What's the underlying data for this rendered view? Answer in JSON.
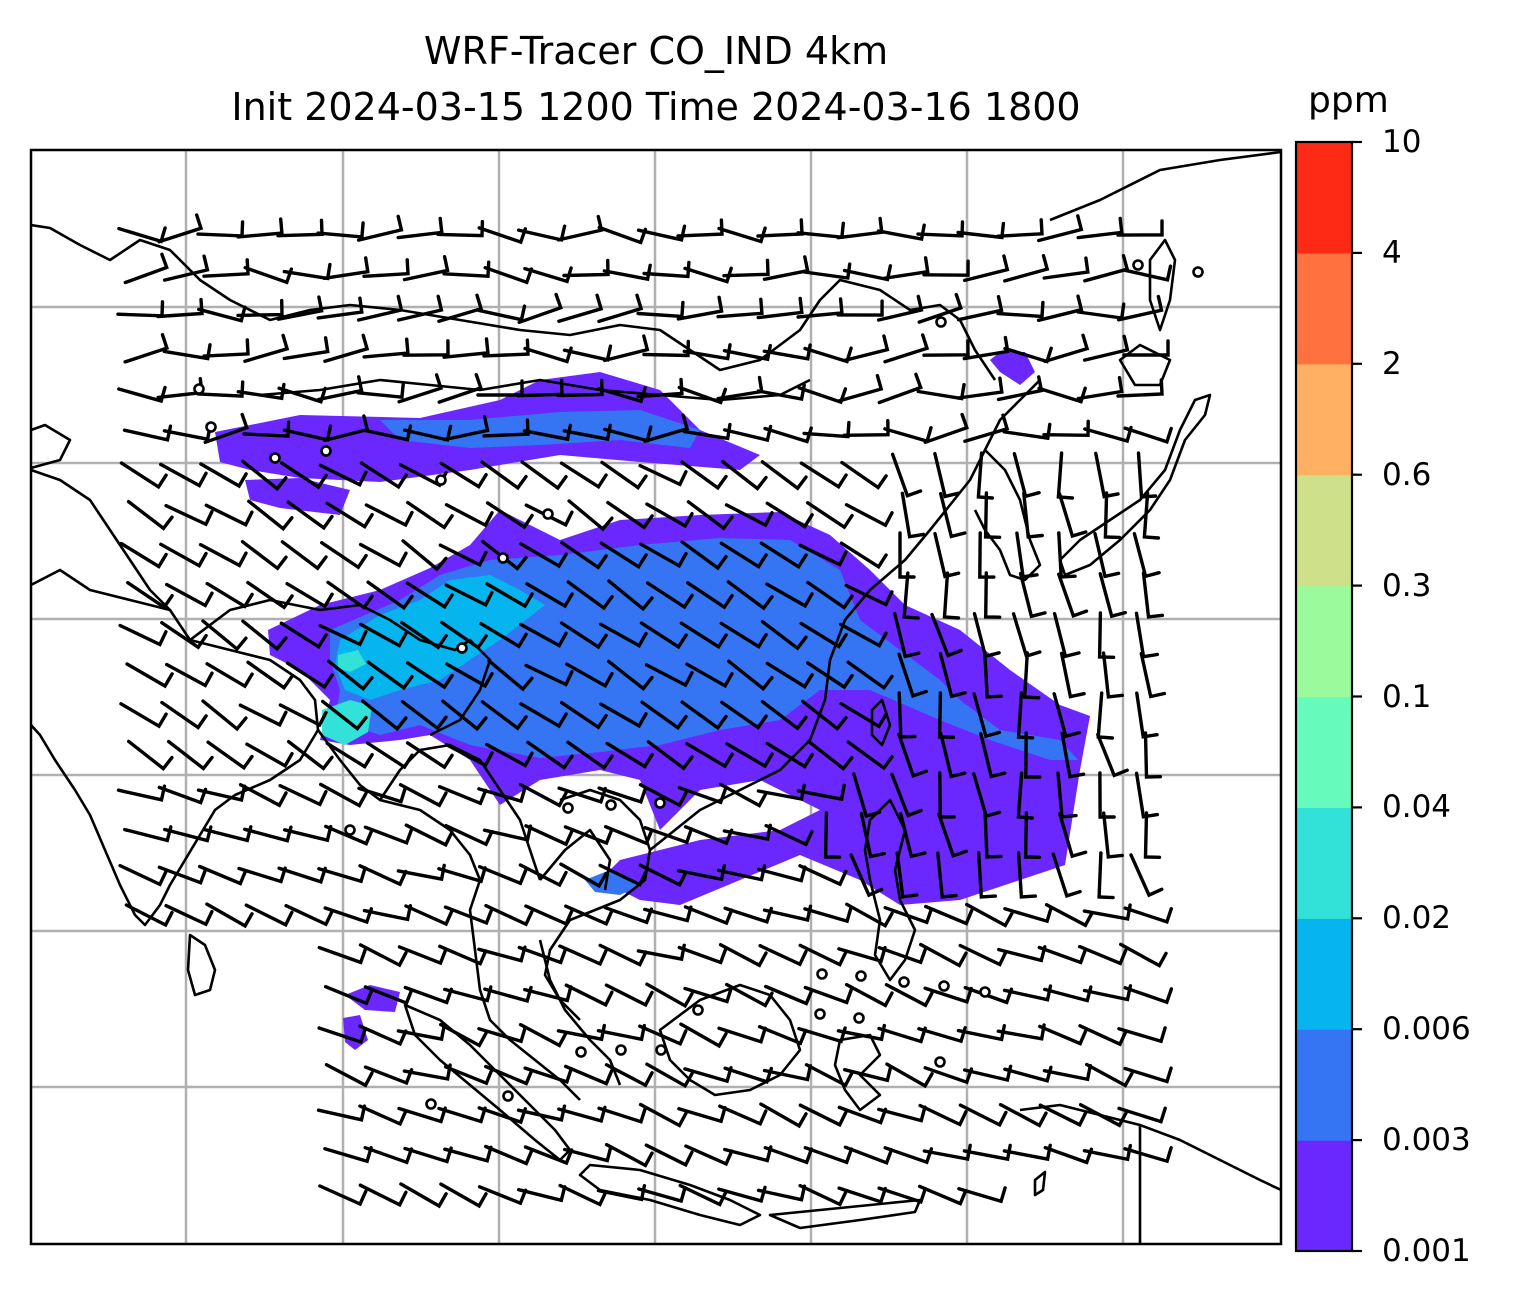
{
  "title": {
    "line1": "WRF-Tracer CO_IND 4km",
    "line2": "Init 2024-03-15 1200 Time 2024-03-16 1800"
  },
  "colorbar": {
    "unit": "ppm",
    "ticks": [
      "10",
      "4",
      "2",
      "0.6",
      "0.3",
      "0.1",
      "0.04",
      "0.02",
      "0.006",
      "0.003",
      "0.001"
    ],
    "colors": [
      "#6a28ff",
      "#3575f3",
      "#06b4ee",
      "#32e1d7",
      "#66fbbd",
      "#9bfb9c",
      "#cfe08a",
      "#ffb062",
      "#ff7240",
      "#ff2a16"
    ]
  },
  "map": {
    "plume_colors": {
      "level1": "#6a28ff",
      "level2": "#3575f3",
      "level3": "#06b4ee",
      "level4": "#32e1d7"
    },
    "grid_color": "#b0b0b0",
    "coast_color": "#000000"
  }
}
